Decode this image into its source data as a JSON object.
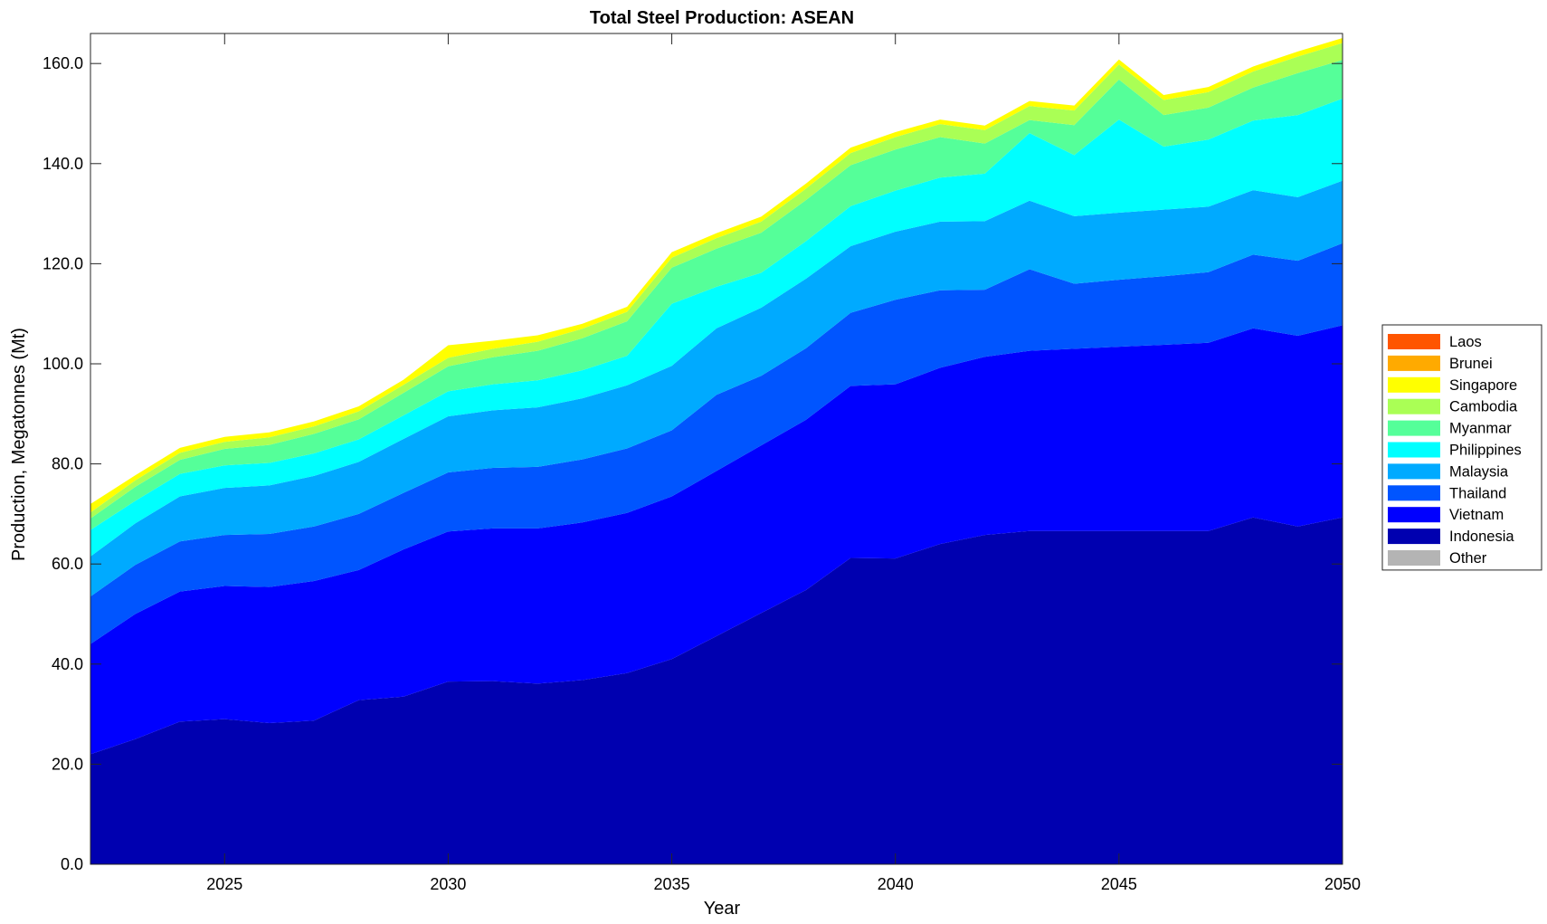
{
  "chart_data": {
    "type": "area",
    "title": "Total Steel Production: ASEAN",
    "xlabel": "Year",
    "ylabel": "Production, Megatonnes (Mt)",
    "xlim": [
      2022,
      2050
    ],
    "ylim": [
      0,
      166
    ],
    "x_ticks": [
      2025,
      2030,
      2035,
      2040,
      2045,
      2050
    ],
    "x_tick_labels": [
      "2025",
      "2030",
      "2035",
      "2040",
      "2045",
      "2050"
    ],
    "y_ticks": [
      0,
      20,
      40,
      60,
      80,
      100,
      120,
      140,
      160
    ],
    "y_tick_labels": [
      "0.0",
      "20.0",
      "40.0",
      "60.0",
      "80.0",
      "100.0",
      "120.0",
      "140.0",
      "160.0"
    ],
    "legend_position": "right",
    "stacked": true,
    "x": [
      2022,
      2023,
      2024,
      2025,
      2026,
      2027,
      2028,
      2029,
      2030,
      2031,
      2032,
      2033,
      2034,
      2035,
      2036,
      2037,
      2038,
      2039,
      2040,
      2041,
      2042,
      2043,
      2044,
      2045,
      2046,
      2047,
      2048,
      2049,
      2050
    ],
    "series": [
      {
        "name": "Indonesia",
        "color": "#0000b0",
        "values": [
          22,
          25,
          28.5,
          29,
          28.2,
          28.7,
          32.8,
          33.5,
          36.5,
          36.6,
          36.1,
          36.8,
          38.2,
          41,
          45.6,
          50.2,
          54.8,
          61.2,
          61.1,
          64,
          65.8,
          66.6,
          66.6,
          66.6,
          66.6,
          66.6,
          69.3,
          67.5,
          69.3
        ]
      },
      {
        "name": "Vietnam",
        "color": "#0000ff",
        "values": [
          22,
          25,
          26,
          26.6,
          27.2,
          27.9,
          26,
          29.4,
          30,
          30.5,
          31,
          31.5,
          32,
          32.5,
          33,
          33.5,
          34,
          34.4,
          34.8,
          35.2,
          35.6,
          36,
          36.4,
          36.8,
          37.2,
          37.6,
          37.8,
          38.1,
          38.4
        ]
      },
      {
        "name": "Thailand",
        "color": "#0055ff",
        "values": [
          9.5,
          9.8,
          10,
          10.2,
          10.6,
          10.9,
          11.2,
          11.3,
          11.8,
          12.1,
          12.3,
          12.6,
          12.9,
          13.2,
          15.2,
          13.9,
          14.3,
          14.6,
          16.9,
          15.5,
          13.4,
          16.3,
          13,
          13.4,
          13.7,
          14.1,
          14.7,
          15,
          16.4
        ]
      },
      {
        "name": "Malaysia",
        "color": "#00aaff",
        "values": [
          8,
          8.3,
          9,
          9.4,
          9.7,
          10.1,
          10.4,
          10.8,
          11.2,
          11.5,
          11.9,
          12.2,
          12.6,
          12.9,
          13.3,
          13.6,
          13.9,
          13.3,
          13.6,
          13.7,
          13.7,
          13.7,
          13.5,
          13.4,
          13.3,
          13.1,
          12.9,
          12.7,
          12.5
        ]
      },
      {
        "name": "Philippines",
        "color": "#00ffff",
        "values": [
          5.3,
          4.5,
          4.5,
          4.5,
          4.5,
          4.5,
          4.5,
          4.7,
          5,
          5.2,
          5.4,
          5.6,
          5.9,
          12.4,
          8.3,
          7,
          7.5,
          8,
          8.2,
          8.8,
          9.5,
          13.5,
          12.2,
          18.6,
          12.6,
          13.4,
          13.9,
          16.4,
          16.4
        ]
      },
      {
        "name": "Myanmar",
        "color": "#55ff99",
        "values": [
          2.3,
          2.8,
          2.8,
          3.3,
          3.6,
          3.9,
          4,
          4.5,
          5,
          5.4,
          5.9,
          6.4,
          6.9,
          7.2,
          7.6,
          8,
          8.2,
          8.2,
          8.2,
          8.1,
          6,
          2.6,
          6,
          8,
          6.3,
          6.4,
          6.6,
          8.4,
          7.7
        ]
      },
      {
        "name": "Cambodia",
        "color": "#aaff55",
        "values": [
          1.2,
          1.3,
          1.4,
          1.4,
          1.5,
          1.5,
          1.6,
          1.6,
          1.7,
          1.7,
          1.8,
          1.9,
          1.9,
          2,
          2.1,
          2.2,
          2.3,
          2.4,
          2.5,
          2.6,
          2.7,
          2.8,
          2.9,
          3,
          3,
          3.1,
          3.2,
          3.3,
          3.4
        ]
      },
      {
        "name": "Singapore",
        "color": "#ffff00",
        "values": [
          1.7,
          1.0,
          1.0,
          1.0,
          1.0,
          1.0,
          1.0,
          1.0,
          2.5,
          1.6,
          1.3,
          1.0,
          1.0,
          1.1,
          1.0,
          1.0,
          1.0,
          1.1,
          1.0,
          0.9,
          0.9,
          1.0,
          1.0,
          1.0,
          1.0,
          1.0,
          1.0,
          1.0,
          1.0
        ]
      },
      {
        "name": "Brunei",
        "color": "#ffaa00",
        "values": [
          0,
          0,
          0,
          0,
          0,
          0,
          0,
          0,
          0,
          0,
          0,
          0,
          0,
          0,
          0,
          0,
          0,
          0,
          0,
          0,
          0,
          0,
          0,
          0,
          0,
          0,
          0,
          0,
          0
        ]
      },
      {
        "name": "Laos",
        "color": "#ff5500",
        "values": [
          0,
          0,
          0,
          0,
          0,
          0,
          0,
          0,
          0,
          0,
          0,
          0,
          0,
          0,
          0,
          0,
          0,
          0,
          0,
          0,
          0,
          0,
          0,
          0,
          0,
          0,
          0,
          0,
          0
        ]
      },
      {
        "name": "Other",
        "color": "#b4b4b4",
        "values": [
          0,
          0,
          0,
          0,
          0,
          0,
          0,
          0,
          0,
          0,
          0,
          0,
          0,
          0,
          0,
          0,
          0,
          0,
          0,
          0,
          0,
          0,
          0,
          0,
          0,
          0,
          0,
          0,
          0
        ]
      }
    ],
    "legend_entries": [
      {
        "label": "Laos",
        "color": "#ff5500"
      },
      {
        "label": "Brunei",
        "color": "#ffaa00"
      },
      {
        "label": "Singapore",
        "color": "#ffff00"
      },
      {
        "label": "Cambodia",
        "color": "#aaff55"
      },
      {
        "label": "Myanmar",
        "color": "#55ff99"
      },
      {
        "label": "Philippines",
        "color": "#00ffff"
      },
      {
        "label": "Malaysia",
        "color": "#00aaff"
      },
      {
        "label": "Thailand",
        "color": "#0055ff"
      },
      {
        "label": "Vietnam",
        "color": "#0000ff"
      },
      {
        "label": "Indonesia",
        "color": "#0000b0"
      },
      {
        "label": "Other",
        "color": "#b4b4b4"
      }
    ]
  }
}
